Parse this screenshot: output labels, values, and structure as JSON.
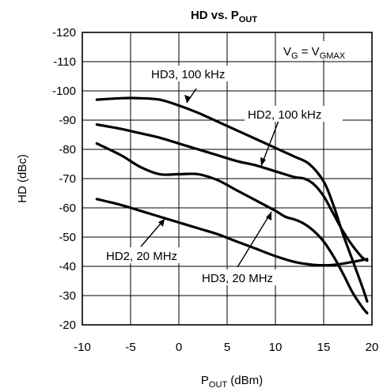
{
  "chart_data": {
    "type": "line",
    "title": {
      "main": "HD vs. P",
      "sub": "OUT"
    },
    "xlabel": {
      "main": "P",
      "sub": "OUT",
      "rest": " (dBm)"
    },
    "ylabel": "HD (dBc)",
    "xlim": [
      -10,
      20
    ],
    "ylim": [
      -20,
      -120
    ],
    "xticks": [
      -10,
      -5,
      0,
      5,
      10,
      15,
      20
    ],
    "yticks": [
      -120,
      -110,
      -100,
      -90,
      -80,
      -70,
      -60,
      -50,
      -40,
      -30,
      -20
    ],
    "grid": true,
    "condition": {
      "v": "V",
      "g": "G",
      "eq": " = V",
      "gmax": "GMAX"
    },
    "series": [
      {
        "name": "HD3, 100 kHz",
        "x": [
          -8.5,
          -6,
          -4,
          -2,
          0,
          2,
          4,
          6,
          8,
          10,
          12,
          13.5,
          15,
          16,
          17,
          18,
          19,
          19.5
        ],
        "y": [
          -97,
          -97.5,
          -97.5,
          -97,
          -95,
          -92.5,
          -89.5,
          -86.5,
          -83.5,
          -80.5,
          -77.5,
          -75,
          -69,
          -61,
          -51,
          -42,
          -33,
          -28
        ]
      },
      {
        "name": "HD2, 100 kHz",
        "x": [
          -8.5,
          -6,
          -4,
          -2,
          0,
          2,
          4,
          6,
          8,
          10,
          12,
          13,
          14,
          15,
          16,
          17,
          18,
          19,
          19.5
        ],
        "y": [
          -88.5,
          -87,
          -85.5,
          -84,
          -82,
          -80,
          -78,
          -76,
          -74.5,
          -72.5,
          -70.5,
          -70,
          -68,
          -64,
          -58,
          -52,
          -47,
          -43,
          -42
        ]
      },
      {
        "name": "HD3, 20 MHz",
        "x": [
          -8.5,
          -6,
          -4,
          -2,
          0,
          2,
          4,
          6,
          8,
          10,
          11,
          12,
          13,
          14,
          15,
          16,
          17,
          18,
          19,
          19.5
        ],
        "y": [
          -82,
          -78,
          -74,
          -71.5,
          -71.5,
          -71.5,
          -69.5,
          -66,
          -62.5,
          -59,
          -57,
          -56,
          -54.5,
          -52,
          -48.5,
          -43.5,
          -37.5,
          -31,
          -26,
          -24
        ]
      },
      {
        "name": "HD2, 20 MHz",
        "x": [
          -8.5,
          -6,
          -4,
          -2,
          0,
          2,
          4,
          6,
          8,
          10,
          12,
          14,
          16,
          18,
          19.5
        ],
        "y": [
          -63,
          -61,
          -59,
          -57,
          -55,
          -53,
          -51,
          -48.5,
          -46,
          -43.5,
          -41.5,
          -40.5,
          -40.5,
          -41.5,
          -42.5
        ]
      }
    ],
    "annotations": [
      {
        "text": "HD3, 100 kHz",
        "series": 0
      },
      {
        "text": "HD2, 100 kHz",
        "series": 1
      },
      {
        "text": "HD3, 20 MHz",
        "series": 2
      },
      {
        "text": "HD2, 20 MHz",
        "series": 3
      }
    ]
  }
}
